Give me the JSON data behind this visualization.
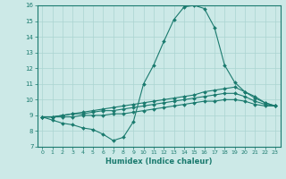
{
  "xlabel": "Humidex (Indice chaleur)",
  "xlim": [
    -0.5,
    23.5
  ],
  "ylim": [
    7,
    16
  ],
  "xticks": [
    0,
    1,
    2,
    3,
    4,
    5,
    6,
    7,
    8,
    9,
    10,
    11,
    12,
    13,
    14,
    15,
    16,
    17,
    18,
    19,
    20,
    21,
    22,
    23
  ],
  "yticks": [
    7,
    8,
    9,
    10,
    11,
    12,
    13,
    14,
    15,
    16
  ],
  "bg_color": "#cce9e7",
  "line_color": "#1a7a6e",
  "grid_color": "#aad4d1",
  "line1_y": [
    8.9,
    8.7,
    8.5,
    8.4,
    8.2,
    8.1,
    7.8,
    7.4,
    7.6,
    8.6,
    11.0,
    12.2,
    13.7,
    15.1,
    15.9,
    16.0,
    15.8,
    14.6,
    12.2,
    11.1,
    10.5,
    10.1,
    9.8,
    9.6
  ],
  "line2_y": [
    8.9,
    8.9,
    9.0,
    9.1,
    9.2,
    9.3,
    9.4,
    9.5,
    9.6,
    9.7,
    9.8,
    9.9,
    10.0,
    10.1,
    10.2,
    10.3,
    10.5,
    10.6,
    10.7,
    10.8,
    10.5,
    10.2,
    9.8,
    9.6
  ],
  "line3_y": [
    8.9,
    8.9,
    9.0,
    9.1,
    9.1,
    9.2,
    9.3,
    9.3,
    9.4,
    9.5,
    9.6,
    9.7,
    9.8,
    9.9,
    10.0,
    10.1,
    10.2,
    10.3,
    10.4,
    10.4,
    10.2,
    9.9,
    9.7,
    9.6
  ],
  "line4_y": [
    8.9,
    8.9,
    8.9,
    8.9,
    9.0,
    9.0,
    9.0,
    9.1,
    9.1,
    9.2,
    9.3,
    9.4,
    9.5,
    9.6,
    9.7,
    9.8,
    9.9,
    9.9,
    10.0,
    10.0,
    9.9,
    9.7,
    9.6,
    9.6
  ]
}
